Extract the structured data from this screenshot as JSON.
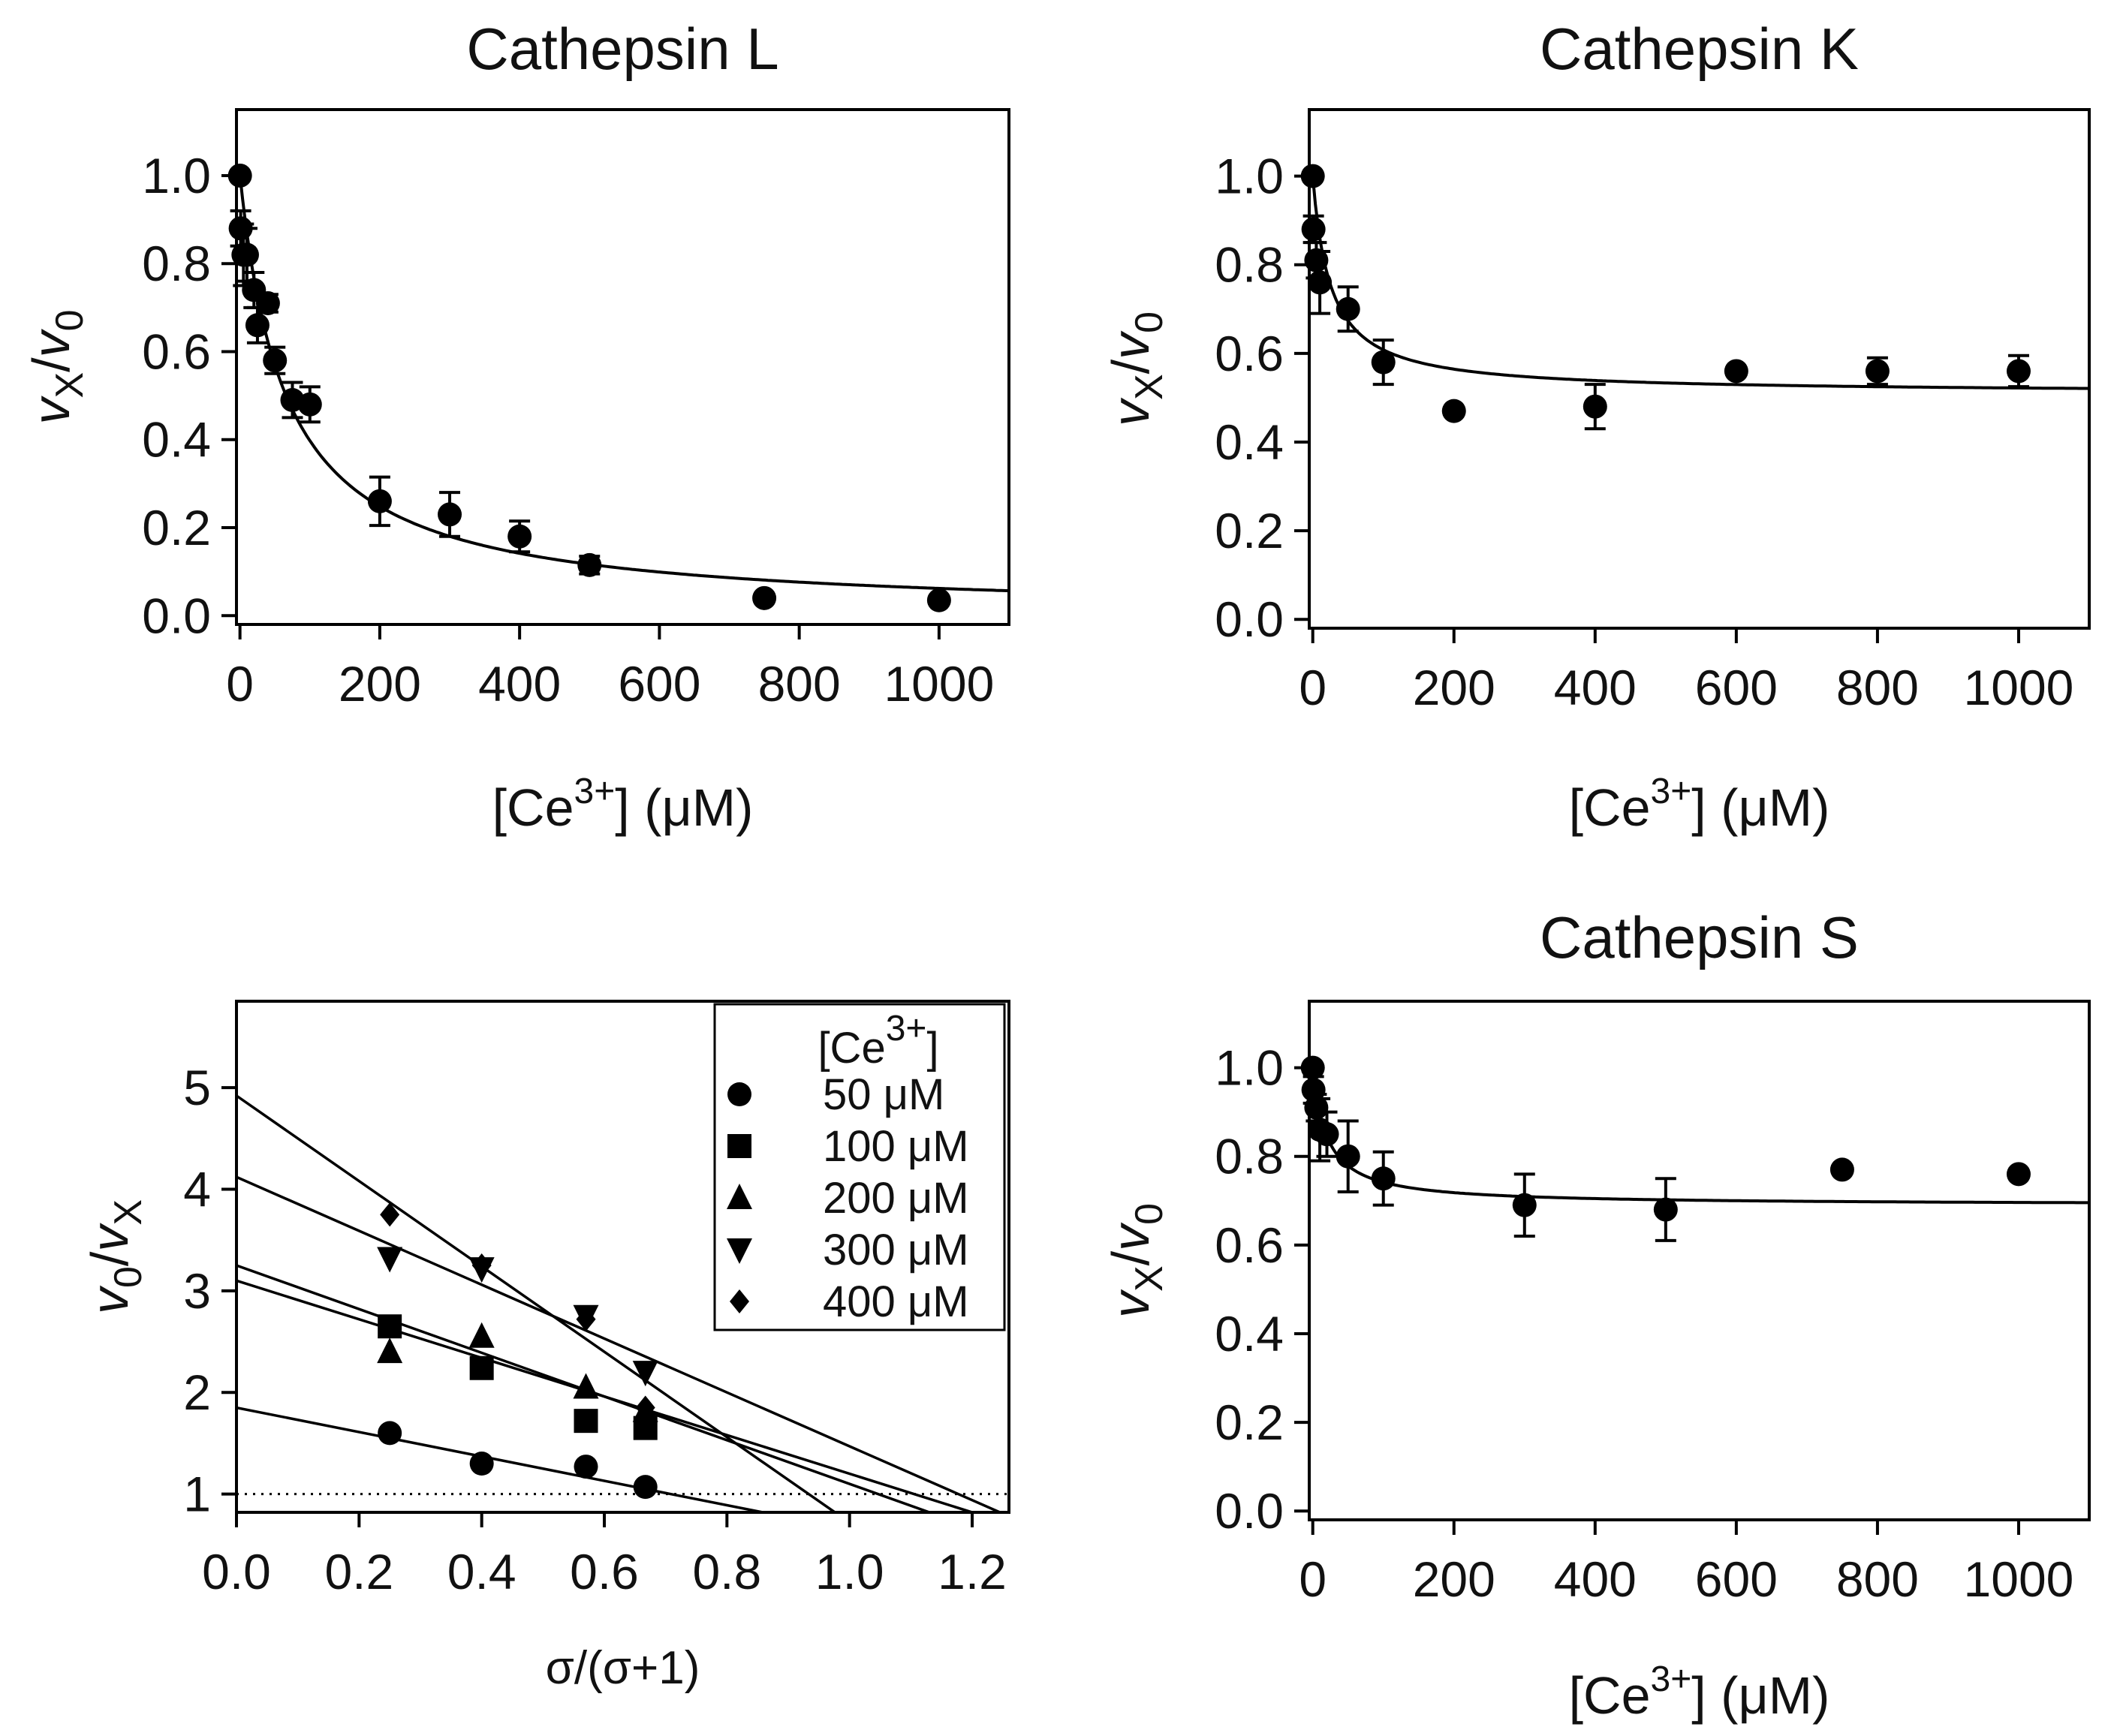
{
  "chart_data": [
    {
      "id": "L",
      "type": "scatter",
      "title": "Cathepsin L",
      "xlabel": {
        "base": "[Ce",
        "sup": "3+",
        "tail": "] (μM)"
      },
      "ylabel": {
        "v1": "v",
        "s1": "X",
        "slash": "/",
        "v2": "v",
        "s2": "0"
      },
      "xlim": [
        -5,
        1100
      ],
      "ylim": [
        -0.02,
        1.15
      ],
      "xticks": [
        0,
        200,
        400,
        600,
        800,
        1000
      ],
      "yticks": [
        0.0,
        0.2,
        0.4,
        0.6,
        0.8,
        1.0
      ],
      "ytick_labels": [
        "0.0",
        "0.2",
        "0.4",
        "0.6",
        "0.8",
        "1.0"
      ],
      "x": [
        0,
        1,
        5,
        10,
        20,
        25,
        40,
        50,
        75,
        100,
        200,
        300,
        400,
        500,
        750,
        1000
      ],
      "y": [
        1.0,
        0.88,
        0.82,
        0.82,
        0.74,
        0.66,
        0.71,
        0.58,
        0.49,
        0.48,
        0.26,
        0.23,
        0.18,
        0.115,
        0.04,
        0.035
      ],
      "yerr": [
        0,
        0.04,
        0.07,
        0.06,
        0.04,
        0.04,
        0.02,
        0.03,
        0.04,
        0.04,
        0.055,
        0.05,
        0.035,
        0.02,
        0,
        0
      ],
      "fit": {
        "model": "hyperbolic",
        "a": 1.0,
        "K": 66,
        "floor": 0.0
      }
    },
    {
      "id": "K",
      "type": "scatter",
      "title": "Cathepsin K",
      "xlabel": {
        "base": "[Ce",
        "sup": "3+",
        "tail": "] (μM)"
      },
      "ylabel": {
        "v1": "v",
        "s1": "X",
        "slash": "/",
        "v2": "v",
        "s2": "0"
      },
      "xlim": [
        -5,
        1100
      ],
      "ylim": [
        -0.02,
        1.15
      ],
      "xticks": [
        0,
        200,
        400,
        600,
        800,
        1000
      ],
      "yticks": [
        0.0,
        0.2,
        0.4,
        0.6,
        0.8,
        1.0
      ],
      "ytick_labels": [
        "0.0",
        "0.2",
        "0.4",
        "0.6",
        "0.8",
        "1.0"
      ],
      "x": [
        0,
        1,
        5,
        10,
        50,
        100,
        200,
        400,
        600,
        800,
        1000
      ],
      "y": [
        1.0,
        0.88,
        0.81,
        0.76,
        0.7,
        0.58,
        0.47,
        0.48,
        0.56,
        0.56,
        0.56
      ],
      "yerr": [
        0,
        0.03,
        0.04,
        0.07,
        0.05,
        0.05,
        0,
        0.05,
        0,
        0.03,
        0.035
      ],
      "fit": {
        "model": "hyperbolic",
        "a": 1.0,
        "K": 25,
        "floor": 0.51
      }
    },
    {
      "id": "Dixon",
      "type": "scatter",
      "title": "",
      "xlabel": {
        "text": "σ/(σ+1)"
      },
      "ylabel": {
        "v1": "v",
        "s1": "0",
        "slash": "/",
        "v2": "v",
        "s2": "X"
      },
      "xlim": [
        0,
        1.26
      ],
      "ylim": [
        0.82,
        5.85
      ],
      "xticks": [
        0.0,
        0.2,
        0.4,
        0.6,
        0.8,
        1.0,
        1.2
      ],
      "xtick_labels": [
        "0.0",
        "0.2",
        "0.4",
        "0.6",
        "0.8",
        "1.0",
        "1.2"
      ],
      "yticks": [
        1,
        2,
        3,
        4,
        5
      ],
      "reference_line": {
        "y": 1,
        "style": "dotted"
      },
      "legend": {
        "title": {
          "base": "[Ce",
          "sup": "3+",
          "tail": "]"
        },
        "position": "top-right"
      },
      "series": [
        {
          "name": "50 μM",
          "marker": "circle",
          "x": [
            0.25,
            0.4,
            0.57,
            0.667
          ],
          "y": [
            1.6,
            1.3,
            1.27,
            1.07
          ],
          "line": [
            1.85,
            -1.2
          ]
        },
        {
          "name": "100 μM",
          "marker": "square",
          "x": [
            0.25,
            0.4,
            0.57,
            0.667
          ],
          "y": [
            2.65,
            2.24,
            1.72,
            1.65
          ],
          "line": [
            3.1,
            -1.9
          ]
        },
        {
          "name": "200 μM",
          "marker": "triangle-up",
          "x": [
            0.25,
            0.4,
            0.57,
            0.667
          ],
          "y": [
            2.4,
            2.55,
            2.05,
            1.82
          ],
          "line": [
            3.25,
            -2.15
          ]
        },
        {
          "name": "300 μM",
          "marker": "triangle-down",
          "x": [
            0.25,
            0.4,
            0.57,
            0.667
          ],
          "y": [
            3.32,
            3.22,
            2.75,
            2.2
          ],
          "line": [
            4.12,
            -2.65
          ]
        },
        {
          "name": "400 μM",
          "marker": "diamond",
          "x": [
            0.25,
            0.4,
            0.57,
            0.667
          ],
          "y": [
            3.75,
            3.25,
            2.72,
            1.85
          ],
          "line": [
            4.92,
            -4.2
          ]
        }
      ]
    },
    {
      "id": "S",
      "type": "scatter",
      "title": "Cathepsin S",
      "xlabel": {
        "base": "[Ce",
        "sup": "3+",
        "tail": "] (μM)"
      },
      "ylabel": {
        "v1": "v",
        "s1": "X",
        "slash": "/",
        "v2": "v",
        "s2": "0"
      },
      "xlim": [
        -5,
        1100
      ],
      "ylim": [
        -0.02,
        1.15
      ],
      "xticks": [
        0,
        200,
        400,
        600,
        800,
        1000
      ],
      "yticks": [
        0.0,
        0.2,
        0.4,
        0.6,
        0.8,
        1.0
      ],
      "ytick_labels": [
        "0.0",
        "0.2",
        "0.4",
        "0.6",
        "0.8",
        "1.0"
      ],
      "x": [
        0,
        1,
        5,
        10,
        20,
        50,
        100,
        300,
        500,
        750,
        1000
      ],
      "y": [
        1.0,
        0.95,
        0.91,
        0.86,
        0.85,
        0.8,
        0.75,
        0.69,
        0.68,
        0.77,
        0.76
      ],
      "yerr": [
        0,
        0.03,
        0.03,
        0.07,
        0.05,
        0.08,
        0.06,
        0.07,
        0.07,
        0,
        0
      ],
      "fit": {
        "model": "hyperbolic",
        "a": 1.0,
        "K": 20,
        "floor": 0.69
      }
    }
  ]
}
